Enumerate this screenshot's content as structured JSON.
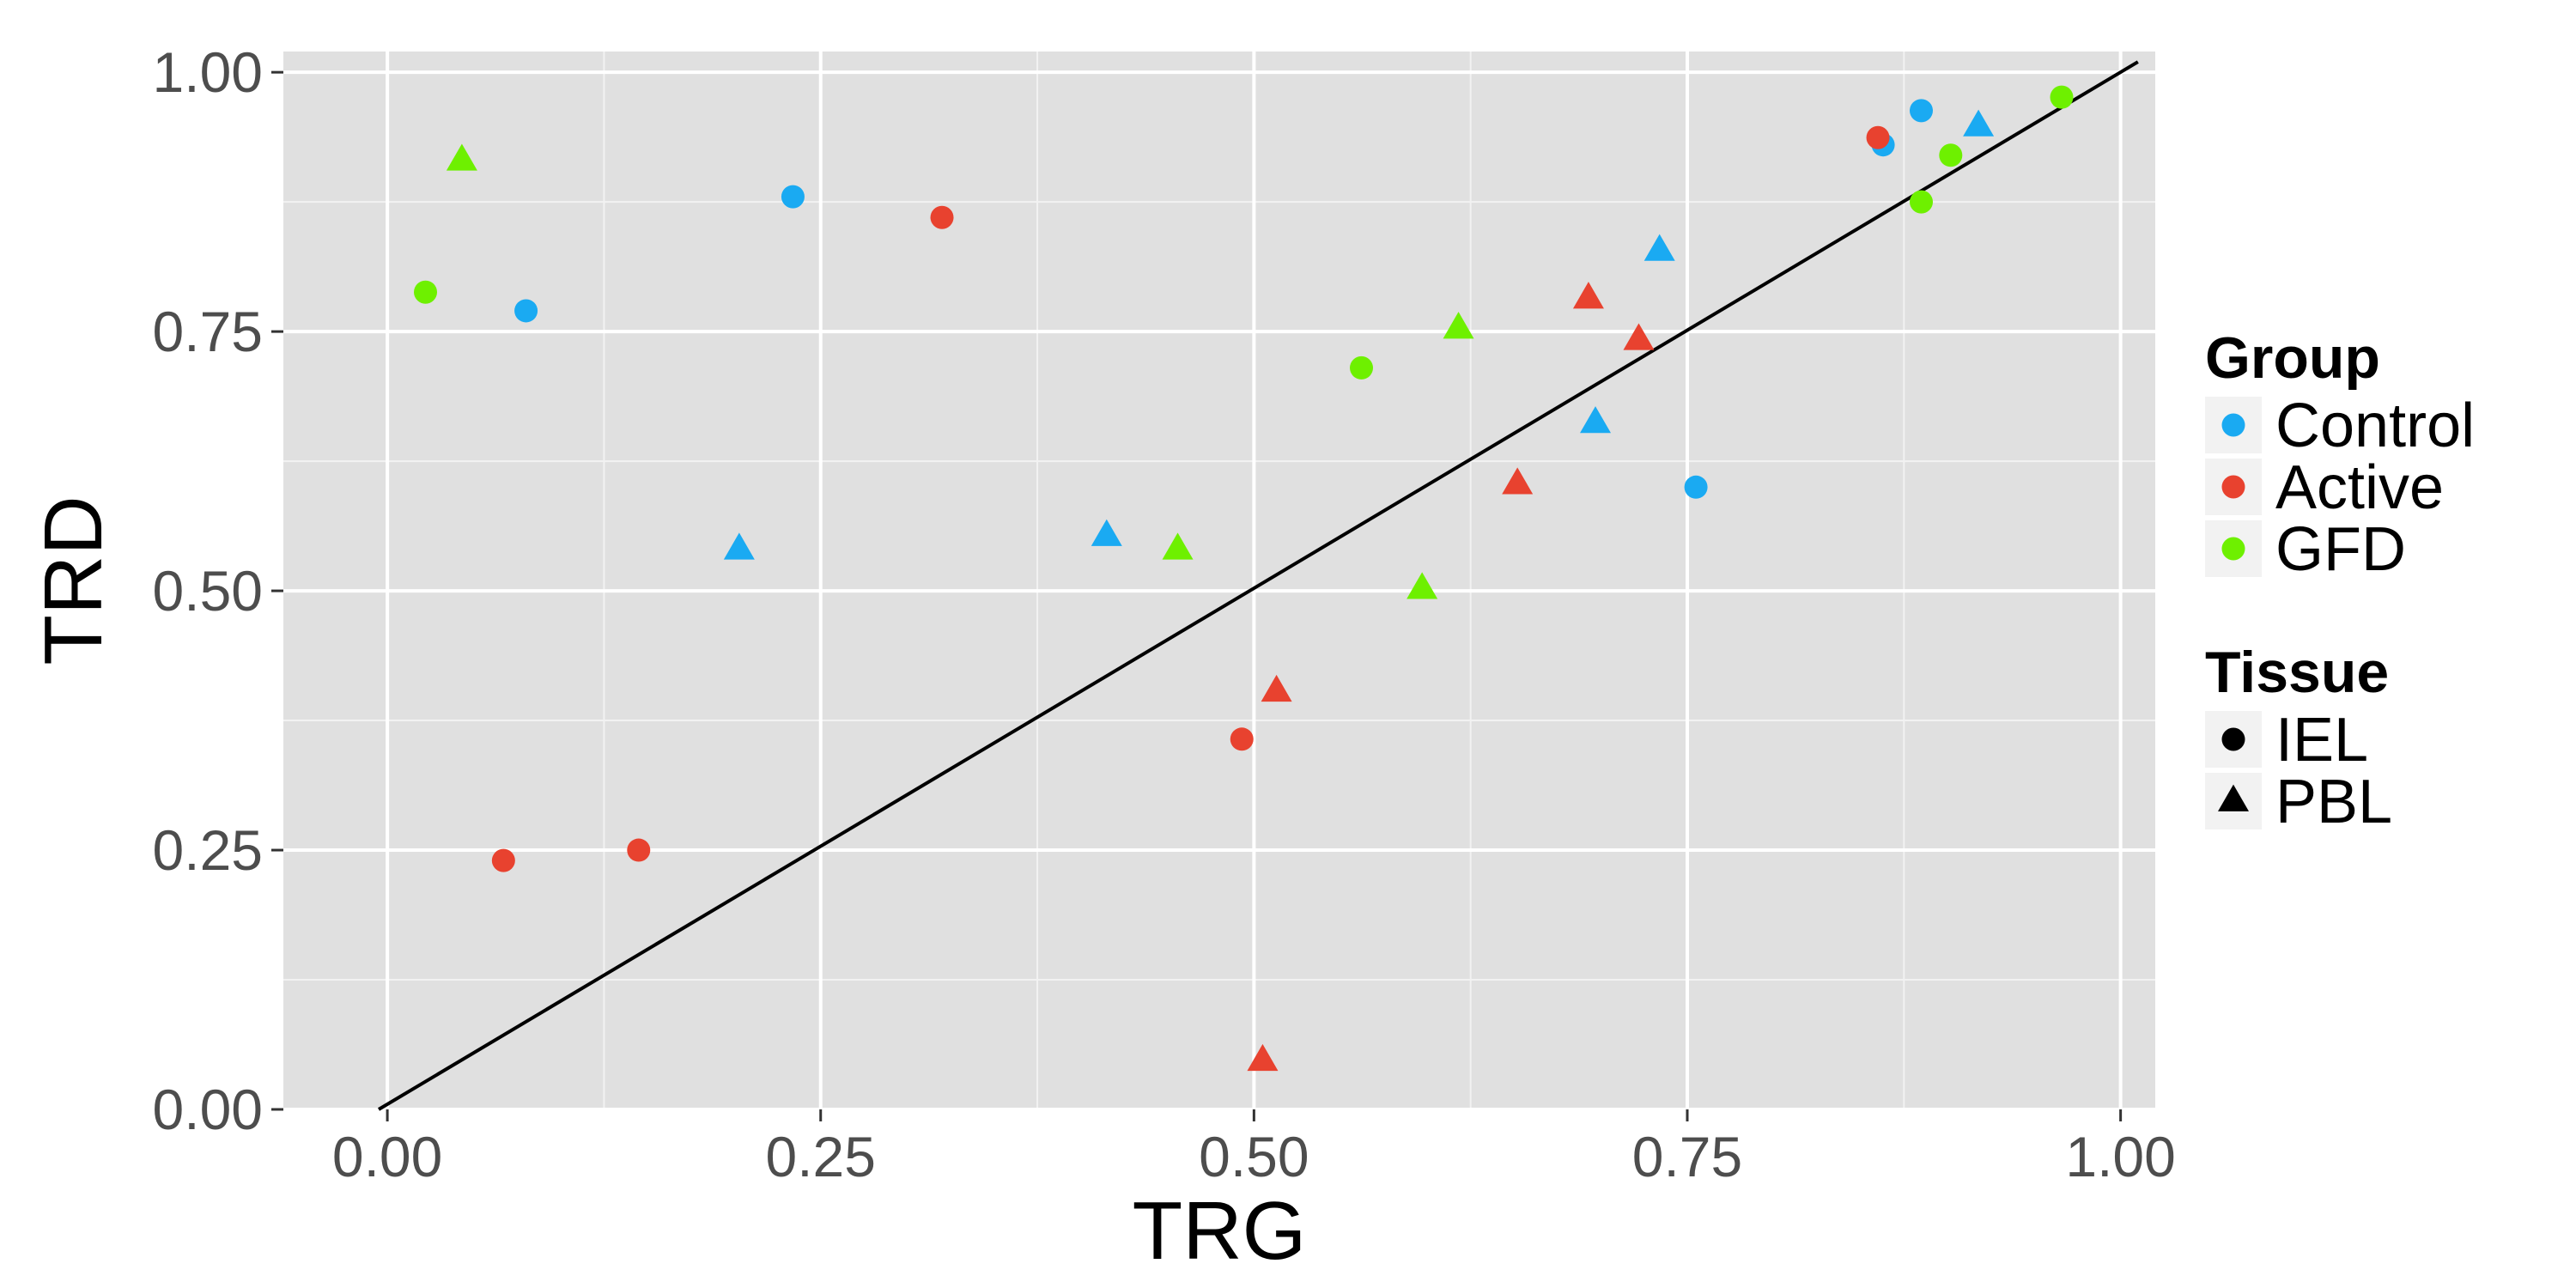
{
  "chart_data": {
    "type": "scatter",
    "xlabel": "TRG",
    "ylabel": "TRD",
    "xlim": [
      -0.06,
      1.02
    ],
    "ylim": [
      0.0,
      1.02
    ],
    "x_ticks": [
      "0.00",
      "0.25",
      "0.50",
      "0.75",
      "1.00"
    ],
    "y_ticks": [
      "0.00",
      "0.25",
      "0.50",
      "0.75",
      "1.00"
    ],
    "grid": true,
    "legend_position": "right",
    "reference_line": {
      "x": [
        -0.005,
        1.01
      ],
      "y": [
        0.0,
        1.01
      ]
    },
    "colors": {
      "Control": "#1aaaf2",
      "Active": "#e8422f",
      "GFD": "#6ef000"
    },
    "legends": [
      {
        "title": "Group",
        "entries": [
          {
            "label": "Control",
            "color": "#1aaaf2"
          },
          {
            "label": "Active",
            "color": "#e8422f"
          },
          {
            "label": "GFD",
            "color": "#6ef000"
          }
        ]
      },
      {
        "title": "Tissue",
        "entries": [
          {
            "label": "IEL",
            "shape": "circle"
          },
          {
            "label": "PBL",
            "shape": "triangle"
          }
        ]
      }
    ],
    "points": [
      {
        "group": "Control",
        "tissue": "IEL",
        "x": 0.08,
        "y": 0.77
      },
      {
        "group": "Control",
        "tissue": "IEL",
        "x": 0.234,
        "y": 0.88
      },
      {
        "group": "Control",
        "tissue": "IEL",
        "x": 0.755,
        "y": 0.6
      },
      {
        "group": "Control",
        "tissue": "IEL",
        "x": 0.863,
        "y": 0.93
      },
      {
        "group": "Control",
        "tissue": "IEL",
        "x": 0.885,
        "y": 0.963
      },
      {
        "group": "Control",
        "tissue": "PBL",
        "x": 0.203,
        "y": 0.54
      },
      {
        "group": "Control",
        "tissue": "PBL",
        "x": 0.415,
        "y": 0.553
      },
      {
        "group": "Control",
        "tissue": "PBL",
        "x": 0.697,
        "y": 0.662
      },
      {
        "group": "Control",
        "tissue": "PBL",
        "x": 0.734,
        "y": 0.828
      },
      {
        "group": "Control",
        "tissue": "PBL",
        "x": 0.918,
        "y": 0.948
      },
      {
        "group": "Active",
        "tissue": "IEL",
        "x": 0.067,
        "y": 0.24
      },
      {
        "group": "Active",
        "tissue": "IEL",
        "x": 0.145,
        "y": 0.25
      },
      {
        "group": "Active",
        "tissue": "IEL",
        "x": 0.32,
        "y": 0.86
      },
      {
        "group": "Active",
        "tissue": "IEL",
        "x": 0.493,
        "y": 0.357
      },
      {
        "group": "Active",
        "tissue": "IEL",
        "x": 0.86,
        "y": 0.937
      },
      {
        "group": "Active",
        "tissue": "PBL",
        "x": 0.505,
        "y": 0.047
      },
      {
        "group": "Active",
        "tissue": "PBL",
        "x": 0.513,
        "y": 0.403
      },
      {
        "group": "Active",
        "tissue": "PBL",
        "x": 0.652,
        "y": 0.603
      },
      {
        "group": "Active",
        "tissue": "PBL",
        "x": 0.693,
        "y": 0.782
      },
      {
        "group": "Active",
        "tissue": "PBL",
        "x": 0.722,
        "y": 0.742
      },
      {
        "group": "GFD",
        "tissue": "IEL",
        "x": 0.022,
        "y": 0.788
      },
      {
        "group": "GFD",
        "tissue": "IEL",
        "x": 0.562,
        "y": 0.715
      },
      {
        "group": "GFD",
        "tissue": "IEL",
        "x": 0.885,
        "y": 0.875
      },
      {
        "group": "GFD",
        "tissue": "IEL",
        "x": 0.902,
        "y": 0.92
      },
      {
        "group": "GFD",
        "tissue": "IEL",
        "x": 0.966,
        "y": 0.976
      },
      {
        "group": "GFD",
        "tissue": "PBL",
        "x": 0.043,
        "y": 0.915
      },
      {
        "group": "GFD",
        "tissue": "PBL",
        "x": 0.456,
        "y": 0.54
      },
      {
        "group": "GFD",
        "tissue": "PBL",
        "x": 0.597,
        "y": 0.502
      },
      {
        "group": "GFD",
        "tissue": "PBL",
        "x": 0.618,
        "y": 0.753
      }
    ]
  }
}
